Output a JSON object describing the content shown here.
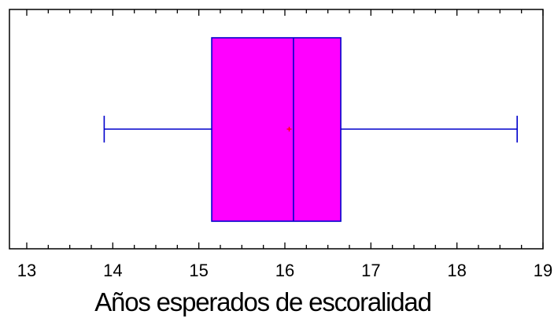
{
  "chart_data": {
    "type": "boxplot",
    "title": "",
    "xlabel": "Años esperados de escoralidad",
    "ylabel": "",
    "xlim": [
      13,
      19
    ],
    "x_ticks": [
      "13",
      "14",
      "15",
      "16",
      "17",
      "18",
      "19"
    ],
    "minor_ticks_per_interval": 4,
    "box": {
      "min": 13.9,
      "q1": 15.15,
      "median": 16.1,
      "q3": 16.65,
      "max": 18.7,
      "mean": 16.05
    },
    "colors": {
      "box_fill": "#ff00ff",
      "box_stroke": "#0000cc",
      "mean_marker": "#ff0000",
      "frame": "#000000"
    }
  }
}
